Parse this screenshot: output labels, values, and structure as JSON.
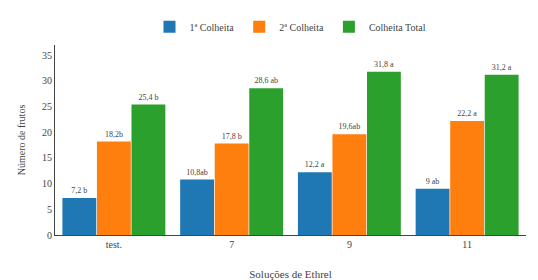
{
  "chart_data": {
    "type": "bar",
    "categories": [
      "test.",
      "7",
      "9",
      "11"
    ],
    "xlabel": "Soluções de Ethrel",
    "ylabel": "Número de frutos",
    "series": [
      {
        "name": "1ª Colheita",
        "values": [
          7.2,
          10.8,
          12.2,
          9.0
        ],
        "value_labels": [
          "7,2 b",
          "10,8ab",
          "12,2 a",
          "9 ab"
        ]
      },
      {
        "name": "2ª Colheita",
        "values": [
          18.2,
          17.8,
          19.6,
          22.2
        ],
        "value_labels": [
          "18,2b",
          "17,8 b",
          "19,6ab",
          "22,2 a"
        ]
      },
      {
        "name": "Colheita Total",
        "values": [
          25.4,
          28.6,
          31.8,
          31.2
        ],
        "value_labels": [
          "25,4 b",
          "28,6 ab",
          "31,8 a",
          "31,2 a"
        ]
      }
    ],
    "ylim": [
      0,
      37
    ],
    "yticks": [
      0,
      5,
      10,
      15,
      20,
      25,
      30,
      35
    ],
    "grid": false,
    "legend": "top",
    "data_labels": true
  }
}
